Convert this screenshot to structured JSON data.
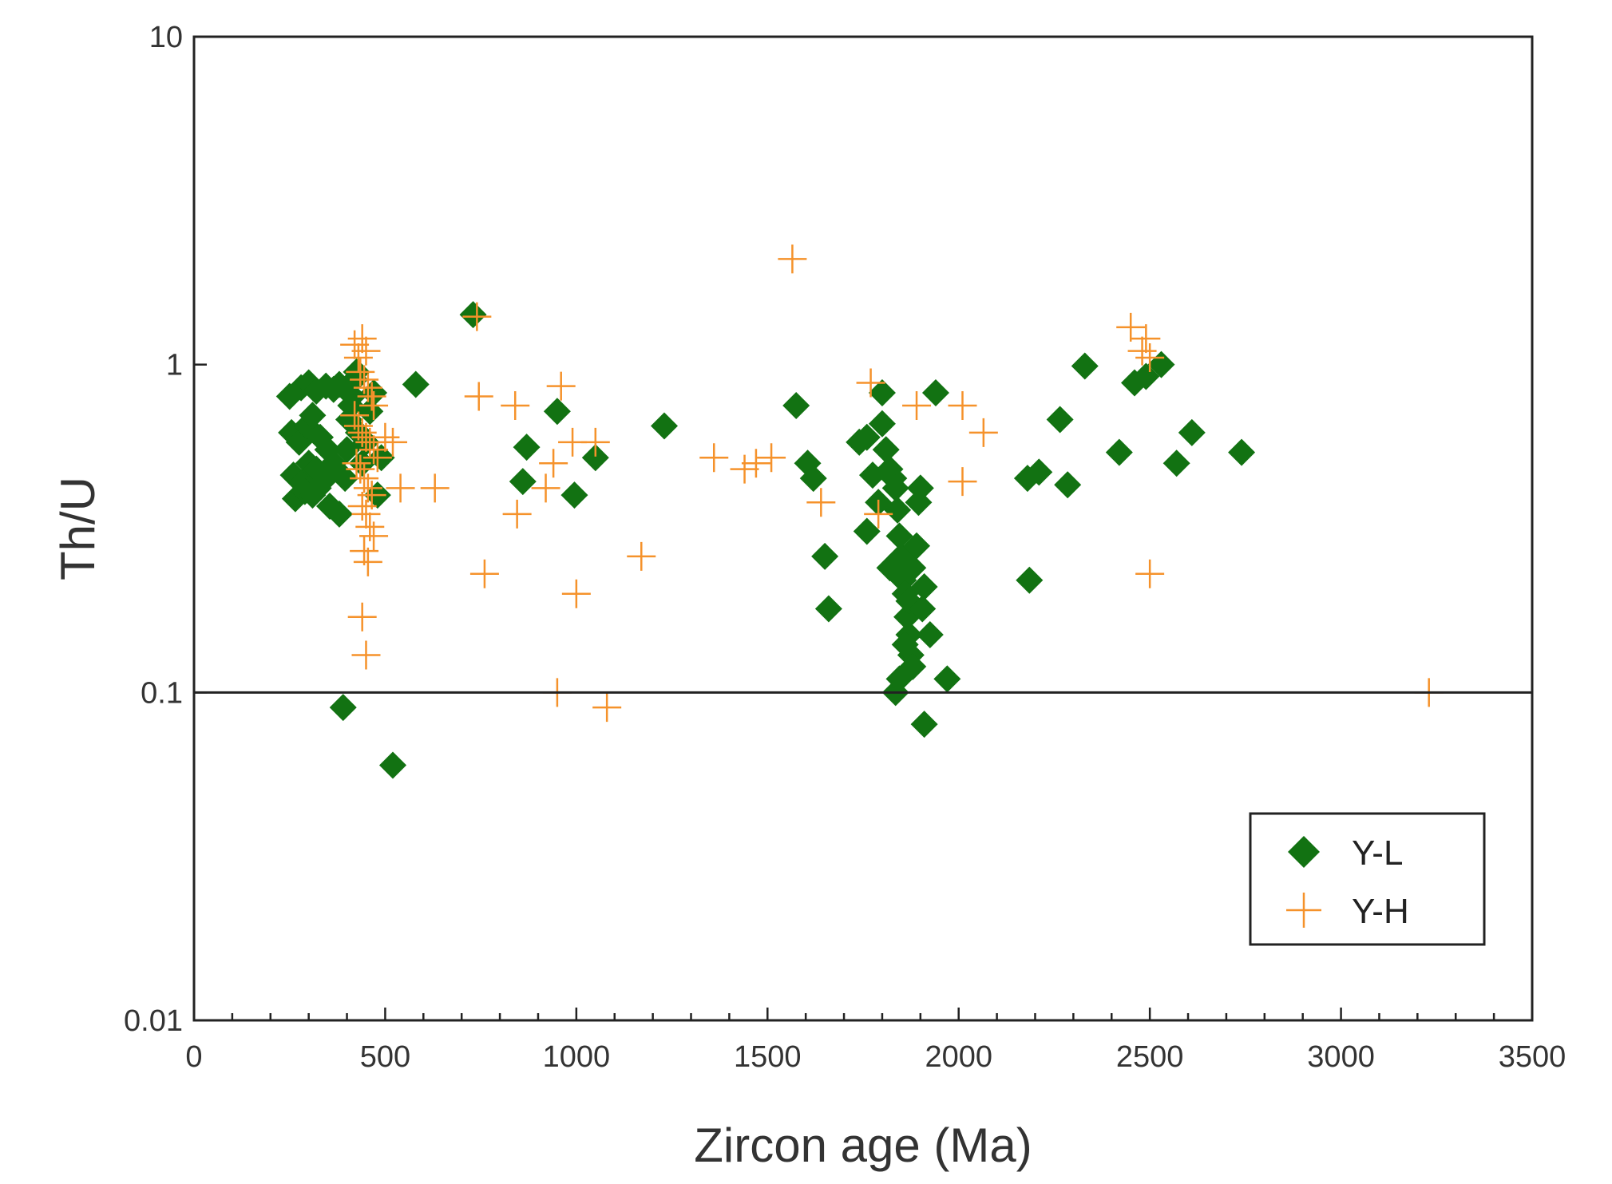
{
  "colors": {
    "yl": "#127212",
    "yh": "#f5922b",
    "axis": "#222222"
  },
  "chart_data": {
    "type": "scatter",
    "xlabel": "Zircon age (Ma)",
    "ylabel": "Th/U",
    "xlim": [
      0,
      3500
    ],
    "ylim": [
      0.01,
      10
    ],
    "yscale": "log",
    "reference_line": 0.1,
    "xticks": [
      "0",
      "500",
      "1000",
      "1500",
      "2000",
      "2500",
      "3000",
      "3500"
    ],
    "yticks": [
      "0.01",
      "0.1",
      "1",
      "10"
    ],
    "legend": {
      "position": "bottom-right",
      "entries": [
        "Y-L",
        "Y-H"
      ]
    },
    "series": [
      {
        "name": "Y-L",
        "marker": "diamond",
        "points": [
          [
            250,
            0.8
          ],
          [
            280,
            0.85
          ],
          [
            300,
            0.88
          ],
          [
            320,
            0.83
          ],
          [
            345,
            0.86
          ],
          [
            365,
            0.84
          ],
          [
            380,
            0.87
          ],
          [
            255,
            0.62
          ],
          [
            275,
            0.58
          ],
          [
            295,
            0.65
          ],
          [
            310,
            0.7
          ],
          [
            330,
            0.6
          ],
          [
            350,
            0.55
          ],
          [
            260,
            0.46
          ],
          [
            285,
            0.44
          ],
          [
            300,
            0.5
          ],
          [
            320,
            0.48
          ],
          [
            345,
            0.45
          ],
          [
            365,
            0.5
          ],
          [
            265,
            0.39
          ],
          [
            290,
            0.41
          ],
          [
            310,
            0.4
          ],
          [
            325,
            0.42
          ],
          [
            355,
            0.37
          ],
          [
            380,
            0.35
          ],
          [
            395,
            0.45
          ],
          [
            400,
            0.55
          ],
          [
            405,
            0.68
          ],
          [
            410,
            0.75
          ],
          [
            415,
            0.8
          ],
          [
            420,
            0.9
          ],
          [
            425,
            0.95
          ],
          [
            430,
            0.62
          ],
          [
            440,
            0.5
          ],
          [
            450,
            0.58
          ],
          [
            460,
            0.72
          ],
          [
            470,
            0.82
          ],
          [
            480,
            0.4
          ],
          [
            490,
            0.52
          ],
          [
            580,
            0.87
          ],
          [
            390,
            0.09
          ],
          [
            520,
            0.06
          ],
          [
            730,
            1.42
          ],
          [
            870,
            0.56
          ],
          [
            860,
            0.44
          ],
          [
            950,
            0.72
          ],
          [
            995,
            0.4
          ],
          [
            1050,
            0.52
          ],
          [
            1230,
            0.65
          ],
          [
            1575,
            0.75
          ],
          [
            1605,
            0.5
          ],
          [
            1620,
            0.45
          ],
          [
            1650,
            0.26
          ],
          [
            1660,
            0.18
          ],
          [
            1740,
            0.58
          ],
          [
            1760,
            0.6
          ],
          [
            1775,
            0.46
          ],
          [
            1790,
            0.38
          ],
          [
            1800,
            0.82
          ],
          [
            1800,
            0.66
          ],
          [
            1810,
            0.55
          ],
          [
            1820,
            0.48
          ],
          [
            1830,
            0.45
          ],
          [
            1835,
            0.42
          ],
          [
            1840,
            0.36
          ],
          [
            1845,
            0.3
          ],
          [
            1850,
            0.26
          ],
          [
            1855,
            0.22
          ],
          [
            1860,
            0.2
          ],
          [
            1865,
            0.17
          ],
          [
            1870,
            0.15
          ],
          [
            1875,
            0.13
          ],
          [
            1880,
            0.12
          ],
          [
            1835,
            0.1
          ],
          [
            1845,
            0.11
          ],
          [
            1860,
            0.14
          ],
          [
            1870,
            0.19
          ],
          [
            1880,
            0.24
          ],
          [
            1890,
            0.28
          ],
          [
            1895,
            0.38
          ],
          [
            1900,
            0.42
          ],
          [
            1910,
            0.21
          ],
          [
            1905,
            0.18
          ],
          [
            1925,
            0.15
          ],
          [
            1910,
            0.08
          ],
          [
            1970,
            0.11
          ],
          [
            1940,
            0.82
          ],
          [
            1760,
            0.31
          ],
          [
            1820,
            0.24
          ],
          [
            2180,
            0.45
          ],
          [
            2210,
            0.47
          ],
          [
            2285,
            0.43
          ],
          [
            2265,
            0.68
          ],
          [
            2185,
            0.22
          ],
          [
            2330,
            0.99
          ],
          [
            2420,
            0.54
          ],
          [
            2460,
            0.88
          ],
          [
            2490,
            0.92
          ],
          [
            2530,
            1.0
          ],
          [
            2570,
            0.5
          ],
          [
            2610,
            0.62
          ],
          [
            2740,
            0.54
          ]
        ]
      },
      {
        "name": "Y-H",
        "marker": "plus",
        "points": [
          [
            420,
            1.15
          ],
          [
            430,
            1.05
          ],
          [
            440,
            1.2
          ],
          [
            450,
            1.1
          ],
          [
            435,
            0.95
          ],
          [
            445,
            0.9
          ],
          [
            455,
            0.85
          ],
          [
            465,
            0.8
          ],
          [
            470,
            0.75
          ],
          [
            420,
            0.7
          ],
          [
            430,
            0.65
          ],
          [
            440,
            0.62
          ],
          [
            450,
            0.6
          ],
          [
            460,
            0.58
          ],
          [
            470,
            0.55
          ],
          [
            480,
            0.52
          ],
          [
            425,
            0.5
          ],
          [
            435,
            0.48
          ],
          [
            445,
            0.45
          ],
          [
            455,
            0.42
          ],
          [
            465,
            0.4
          ],
          [
            440,
            0.37
          ],
          [
            450,
            0.35
          ],
          [
            460,
            0.32
          ],
          [
            470,
            0.3
          ],
          [
            445,
            0.27
          ],
          [
            455,
            0.25
          ],
          [
            440,
            0.17
          ],
          [
            450,
            0.13
          ],
          [
            500,
            0.6
          ],
          [
            520,
            0.58
          ],
          [
            540,
            0.42
          ],
          [
            630,
            0.42
          ],
          [
            740,
            1.4
          ],
          [
            745,
            0.8
          ],
          [
            760,
            0.23
          ],
          [
            840,
            0.75
          ],
          [
            845,
            0.35
          ],
          [
            920,
            0.42
          ],
          [
            940,
            0.5
          ],
          [
            960,
            0.86
          ],
          [
            990,
            0.58
          ],
          [
            1000,
            0.2
          ],
          [
            1050,
            0.58
          ],
          [
            950,
            0.1
          ],
          [
            1080,
            0.09
          ],
          [
            1170,
            0.26
          ],
          [
            1360,
            0.52
          ],
          [
            1440,
            0.48
          ],
          [
            1470,
            0.5
          ],
          [
            1510,
            0.52
          ],
          [
            1565,
            2.1
          ],
          [
            1640,
            0.38
          ],
          [
            1770,
            0.88
          ],
          [
            1790,
            0.35
          ],
          [
            1890,
            0.75
          ],
          [
            2010,
            0.75
          ],
          [
            2010,
            0.44
          ],
          [
            2065,
            0.62
          ],
          [
            2450,
            1.3
          ],
          [
            2480,
            1.1
          ],
          [
            2490,
            1.2
          ],
          [
            2500,
            1.05
          ],
          [
            2500,
            0.23
          ],
          [
            3230,
            0.1
          ]
        ]
      }
    ]
  }
}
